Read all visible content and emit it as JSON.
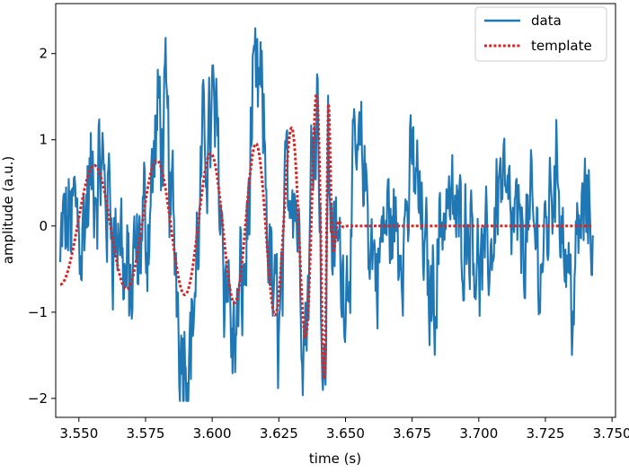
{
  "chart_data": {
    "type": "line",
    "title": "",
    "xlabel": "time (s)",
    "ylabel": "amplitude (a.u.)",
    "xlim": [
      3.5413,
      3.7513
    ],
    "ylim": [
      -2.22,
      2.58
    ],
    "xticks": [
      3.55,
      3.575,
      3.6,
      3.625,
      3.65,
      3.675,
      3.7,
      3.725,
      3.75
    ],
    "xtick_labels": [
      "3.550",
      "3.575",
      "3.600",
      "3.625",
      "3.650",
      "3.675",
      "3.700",
      "3.725",
      "3.750"
    ],
    "yticks": [
      -2,
      -1,
      0,
      1,
      2
    ],
    "ytick_labels": [
      "−2",
      "−1",
      "0",
      "1",
      "2"
    ],
    "grid": false,
    "legend_position": "top-right",
    "series": [
      {
        "name": "data",
        "color": "#1f77b4",
        "style": "solid",
        "description": "noisy strain data sampled 3.543–3.743 s",
        "x_range": [
          3.543,
          3.743
        ],
        "y_extent": [
          -2.03,
          2.42
        ]
      },
      {
        "name": "template",
        "color": "#d62728",
        "style": "dotted",
        "description": "chirp template, frequency and amplitude rising until merger near 3.643 s, flat 0 afterwards",
        "x_range": [
          3.543,
          3.743
        ],
        "merger_time": 3.6435,
        "peak_amplitude": 1.78
      }
    ]
  }
}
